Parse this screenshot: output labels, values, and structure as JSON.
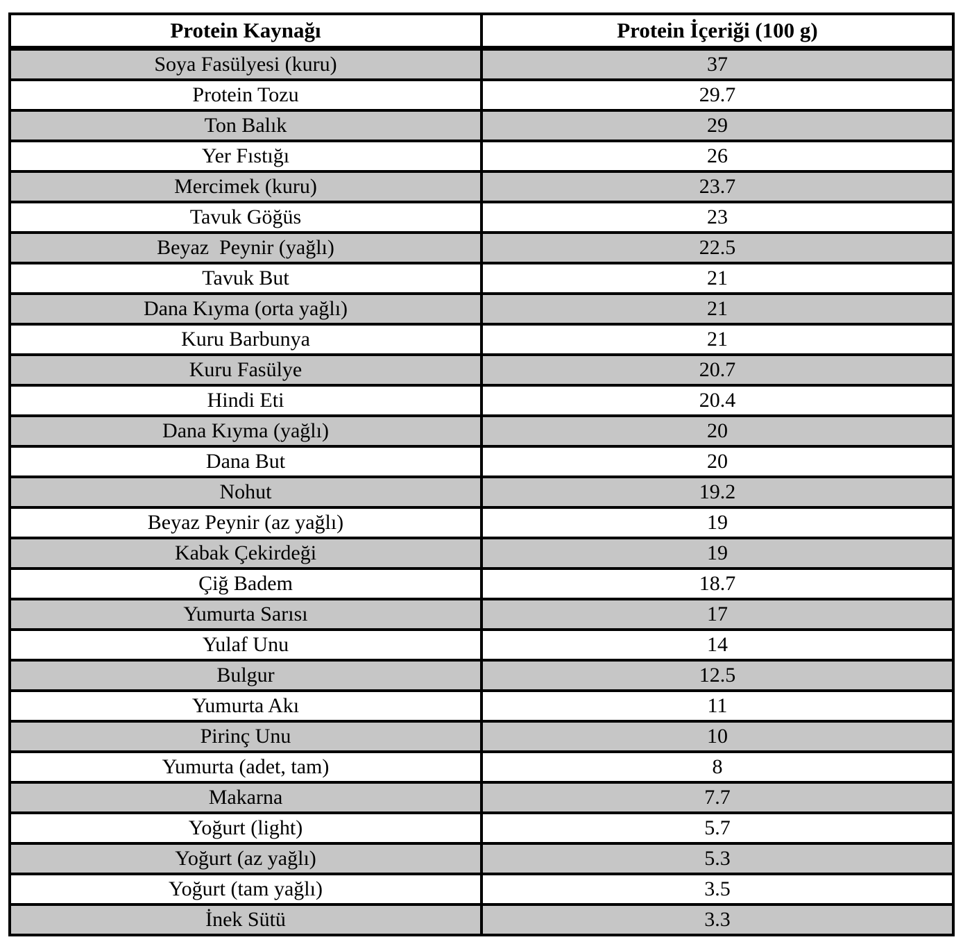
{
  "table": {
    "columns": [
      "Protein Kaynağı",
      "Protein İçeriği (100 g)"
    ],
    "rows": [
      {
        "source": "Soya Fasülyesi (kuru)",
        "value": "37"
      },
      {
        "source": "Protein Tozu",
        "value": "29.7"
      },
      {
        "source": "Ton Balık",
        "value": "29"
      },
      {
        "source": "Yer Fıstığı",
        "value": "26"
      },
      {
        "source": "Mercimek (kuru)",
        "value": "23.7"
      },
      {
        "source": "Tavuk Göğüs",
        "value": "23"
      },
      {
        "source": "Beyaz  Peynir (yağlı)",
        "value": "22.5"
      },
      {
        "source": "Tavuk But",
        "value": "21"
      },
      {
        "source": "Dana Kıyma (orta yağlı)",
        "value": "21"
      },
      {
        "source": "Kuru Barbunya",
        "value": "21"
      },
      {
        "source": "Kuru Fasülye",
        "value": "20.7"
      },
      {
        "source": "Hindi Eti",
        "value": "20.4"
      },
      {
        "source": "Dana Kıyma (yağlı)",
        "value": "20"
      },
      {
        "source": "Dana But",
        "value": "20"
      },
      {
        "source": "Nohut",
        "value": "19.2"
      },
      {
        "source": "Beyaz Peynir (az yağlı)",
        "value": "19"
      },
      {
        "source": "Kabak Çekirdeği",
        "value": "19"
      },
      {
        "source": "Çiğ Badem",
        "value": "18.7"
      },
      {
        "source": "Yumurta Sarısı",
        "value": "17"
      },
      {
        "source": "Yulaf Unu",
        "value": "14"
      },
      {
        "source": "Bulgur",
        "value": "12.5"
      },
      {
        "source": "Yumurta Akı",
        "value": "11"
      },
      {
        "source": "Pirinç Unu",
        "value": "10"
      },
      {
        "source": "Yumurta (adet, tam)",
        "value": "8"
      },
      {
        "source": "Makarna",
        "value": "7.7"
      },
      {
        "source": "Yoğurt (light)",
        "value": "5.7"
      },
      {
        "source": "Yoğurt (az yağlı)",
        "value": "5.3"
      },
      {
        "source": "Yoğurt (tam yağlı)",
        "value": "3.5"
      },
      {
        "source": "İnek Sütü",
        "value": "3.3"
      }
    ],
    "row_colors": {
      "gray": "#c6c6c6",
      "white": "#ffffff",
      "border": "#000000"
    }
  }
}
